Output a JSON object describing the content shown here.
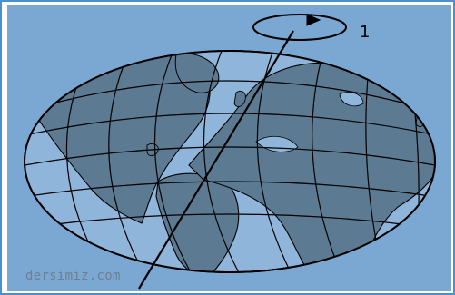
{
  "diagram": {
    "rotation_label": "1",
    "watermark": "dersimiz.com",
    "colors": {
      "background": "#7aa8d2",
      "globe_water": "#8fb5db",
      "globe_land": "#5c7a91",
      "lines": "#000000",
      "border": "#4a8fd0"
    }
  }
}
